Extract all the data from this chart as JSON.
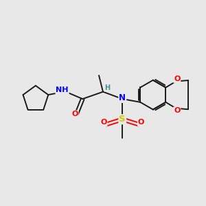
{
  "background_color": "#e8e8e8",
  "bond_color": "#1a1a1a",
  "N_color": "#0000ff",
  "O_color": "#ff0000",
  "S_color": "#cccc00",
  "H_color": "#4a9090",
  "figsize": [
    3.0,
    3.0
  ],
  "dpi": 100,
  "xlim": [
    0,
    10
  ],
  "ylim": [
    0,
    10
  ]
}
